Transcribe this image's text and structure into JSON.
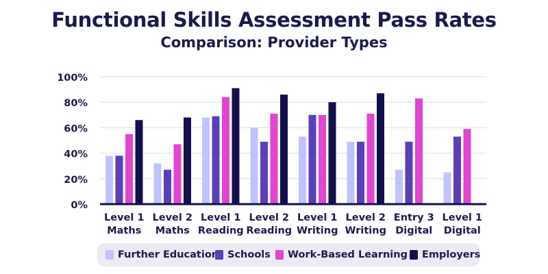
{
  "chart_data": {
    "type": "bar",
    "title": "Functional Skills Assessment Pass Rates",
    "subtitle": "Comparison: Provider Types",
    "y_ticks": [
      {
        "value": 0,
        "label": "0%"
      },
      {
        "value": 20,
        "label": "20%"
      },
      {
        "value": 40,
        "label": "40%"
      },
      {
        "value": 60,
        "label": "60%"
      },
      {
        "value": 80,
        "label": "80%"
      },
      {
        "value": 100,
        "label": "100%"
      }
    ],
    "ylim": [
      0,
      100
    ],
    "grid": true,
    "legend_position": "bottom",
    "categories": [
      [
        "Level 1",
        "Maths"
      ],
      [
        "Level 2",
        "Maths"
      ],
      [
        "Level 1",
        "Reading"
      ],
      [
        "Level 2",
        "Reading"
      ],
      [
        "Level 1",
        "Writing"
      ],
      [
        "Level 2",
        "Writing"
      ],
      [
        "Entry 3",
        "Digital"
      ],
      [
        "Level 1",
        "Digital"
      ]
    ],
    "series": [
      {
        "name": "Further Education",
        "color": "#c3c3fb",
        "values": [
          38,
          32,
          68,
          60,
          53,
          49,
          27,
          25
        ]
      },
      {
        "name": "Schools",
        "color": "#5b3fb3",
        "values": [
          38,
          27,
          69,
          49,
          70,
          49,
          49,
          53
        ]
      },
      {
        "name": "Work-Based Learning",
        "color": "#e046cf",
        "values": [
          55,
          47,
          84,
          71,
          70,
          71,
          83,
          59
        ]
      },
      {
        "name": "Employers",
        "color": "#14104b",
        "values": [
          66,
          68,
          91,
          86,
          80,
          87,
          null,
          null
        ]
      }
    ]
  }
}
